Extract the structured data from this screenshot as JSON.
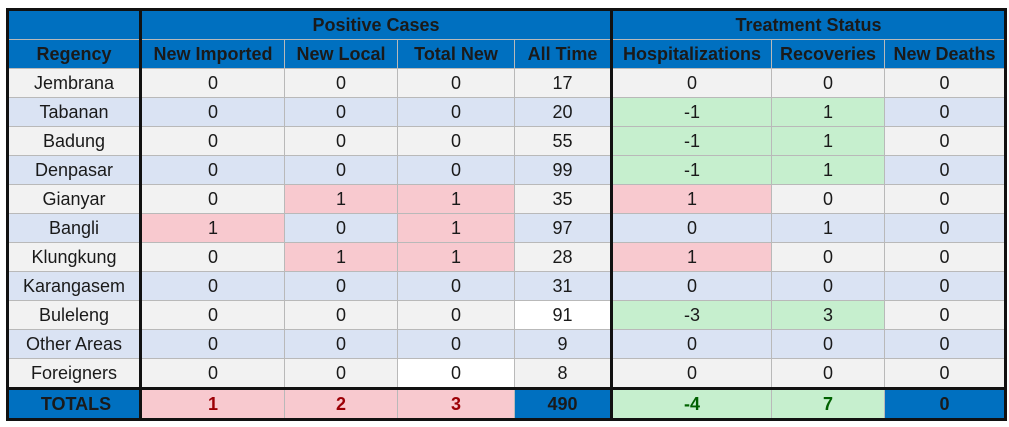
{
  "header": {
    "group_positive": "Positive Cases",
    "group_treatment": "Treatment Status",
    "columns": [
      "Regency",
      "New Imported",
      "New Local",
      "Total New",
      "All Time",
      "Hospitalizations",
      "Recoveries",
      "New Deaths"
    ]
  },
  "rows": [
    {
      "name": "Jembrana",
      "vals": [
        "0",
        "0",
        "0",
        "17",
        "0",
        "0",
        "0"
      ]
    },
    {
      "name": "Tabanan",
      "vals": [
        "0",
        "0",
        "0",
        "20",
        "-1",
        "1",
        "0"
      ]
    },
    {
      "name": "Badung",
      "vals": [
        "0",
        "0",
        "0",
        "55",
        "-1",
        "1",
        "0"
      ]
    },
    {
      "name": "Denpasar",
      "vals": [
        "0",
        "0",
        "0",
        "99",
        "-1",
        "1",
        "0"
      ]
    },
    {
      "name": "Gianyar",
      "vals": [
        "0",
        "1",
        "1",
        "35",
        "1",
        "0",
        "0"
      ]
    },
    {
      "name": "Bangli",
      "vals": [
        "1",
        "0",
        "1",
        "97",
        "0",
        "1",
        "0"
      ]
    },
    {
      "name": "Klungkung",
      "vals": [
        "0",
        "1",
        "1",
        "28",
        "1",
        "0",
        "0"
      ]
    },
    {
      "name": "Karangasem",
      "vals": [
        "0",
        "0",
        "0",
        "31",
        "0",
        "0",
        "0"
      ]
    },
    {
      "name": "Buleleng",
      "vals": [
        "0",
        "0",
        "0",
        "91",
        "-3",
        "3",
        "0"
      ]
    },
    {
      "name": "Other Areas",
      "vals": [
        "0",
        "0",
        "0",
        "9",
        "0",
        "0",
        "0"
      ]
    },
    {
      "name": "Foreigners",
      "vals": [
        "0",
        "0",
        "0",
        "8",
        "0",
        "0",
        "0"
      ]
    }
  ],
  "totals": {
    "name": "TOTALS",
    "vals": [
      "1",
      "2",
      "3",
      "490",
      "-4",
      "7",
      "0"
    ]
  },
  "colors": {
    "header_blue": "#0070c0",
    "positive_fill": "#f8c9cf",
    "positive_text": "#9c0006",
    "negative_fill": "#c6efce",
    "negative_text": "#006100",
    "row_gray": "#f2f2f2",
    "row_blue": "#dae3f3"
  }
}
